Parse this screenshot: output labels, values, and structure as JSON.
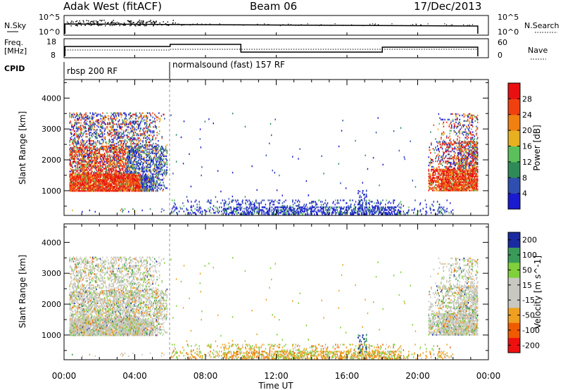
{
  "header": {
    "station": "Adak West (fitACF)",
    "beam": "Beam 06",
    "date": "17/Dec/2013"
  },
  "panels": {
    "nsky_label": "N.Sky",
    "nsky_scale_top": "10^5",
    "nsky_scale_bottom": "10^0",
    "nsearch_label": "N.Search",
    "nsearch_scale_top": "10^5",
    "nsearch_scale_bottom": "10^0",
    "freq_label_1": "Freq.",
    "freq_label_2": "[MHz]",
    "freq_top": "18",
    "freq_bottom": "8",
    "nave_label": "Nave",
    "nave_top": "60",
    "nave_bottom": "0",
    "cpid_label": "CPID",
    "cpid_1": "rbsp 200 RF",
    "cpid_2": "normalsound (fast) 157 RF"
  },
  "colors": {
    "power": [
      "#1a1ad0",
      "#2f4fb0",
      "#2e8b57",
      "#5bbf5b",
      "#e6b020",
      "#f08010",
      "#f04010",
      "#e81010"
    ],
    "velocity": [
      "#ee1010",
      "#f05a00",
      "#f0a020",
      "#c8c8c0",
      "#c8c8c0",
      "#7fd03a",
      "#3a9a5a",
      "#1a2aa0"
    ]
  },
  "chart_data": [
    {
      "type": "heatmap",
      "quantity": "Power",
      "ylabel": "Slant Range [km]",
      "xlabel": "Time UT",
      "x_ticks": [
        "00:00",
        "04:00",
        "08:00",
        "12:00",
        "16:00",
        "20:00",
        "00:00"
      ],
      "x_range_hours": [
        0,
        24
      ],
      "y_ticks": [
        1000,
        2000,
        3000,
        4000
      ],
      "y_range": [
        200,
        4600
      ],
      "colorbar_label": "Power [dB]",
      "colorbar_ticks": [
        4,
        8,
        12,
        16,
        20,
        24,
        28
      ],
      "cpid_change_hour": 6
    },
    {
      "type": "heatmap",
      "quantity": "Velocity",
      "ylabel": "Slant Range [km]",
      "xlabel": "Time UT",
      "x_ticks": [
        "00:00",
        "04:00",
        "08:00",
        "12:00",
        "16:00",
        "20:00",
        "00:00"
      ],
      "x_range_hours": [
        0,
        24
      ],
      "y_ticks": [
        1000,
        2000,
        3000,
        4000
      ],
      "y_range": [
        200,
        4600
      ],
      "colorbar_label": "Velocity [m s^-1]",
      "colorbar_ticks": [
        -200,
        -100,
        -50,
        -15,
        15,
        50,
        100,
        200
      ],
      "cpid_change_hour": 6
    }
  ]
}
